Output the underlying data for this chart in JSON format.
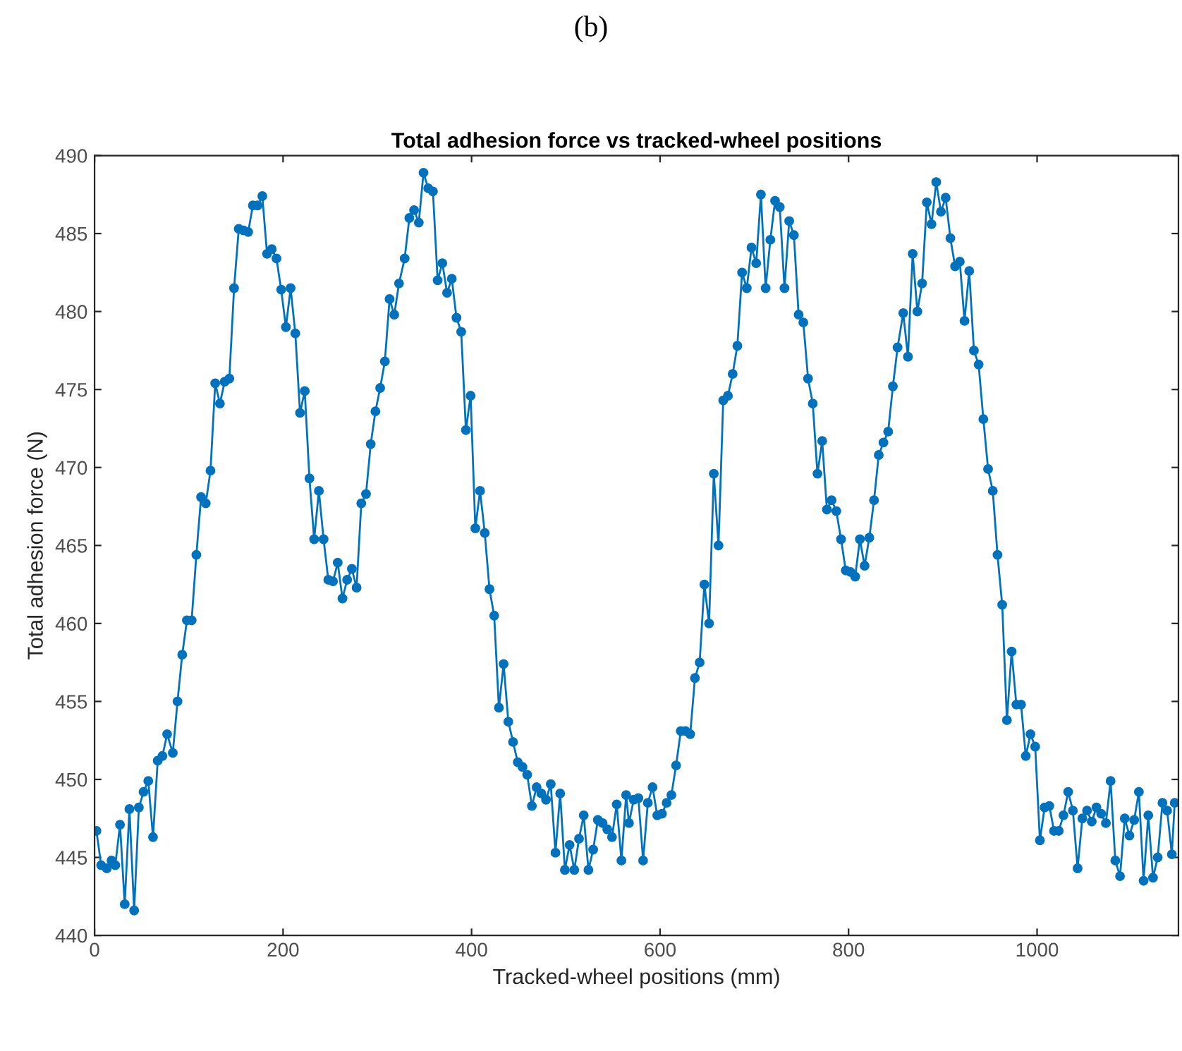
{
  "chart_data": {
    "type": "line",
    "title": "Total adhesion force vs tracked-wheel positions",
    "xlabel": "Tracked-wheel positions (mm)",
    "ylabel": "Total adhesion force (N)",
    "annotations": [
      "(b)"
    ],
    "x": [
      2,
      7,
      13,
      18,
      22,
      27,
      32,
      37,
      42,
      47,
      52,
      57,
      62,
      67,
      72,
      77,
      83,
      88,
      93,
      98,
      103,
      108,
      113,
      118,
      123,
      128,
      133,
      138,
      143,
      148,
      153,
      158,
      163,
      168,
      173,
      178,
      183,
      188,
      193,
      198,
      203,
      208,
      213,
      218,
      223,
      228,
      233,
      238,
      243,
      248,
      253,
      258,
      263,
      268,
      273,
      278,
      283,
      288,
      293,
      298,
      303,
      308,
      313,
      318,
      323,
      329,
      334,
      339,
      344,
      349,
      354,
      359,
      364,
      369,
      374,
      379,
      384,
      389,
      394,
      399,
      404,
      409,
      414,
      419,
      424,
      429,
      434,
      439,
      444,
      449,
      454,
      459,
      464,
      469,
      474,
      479,
      484,
      489,
      494,
      499,
      504,
      509,
      514,
      519,
      524,
      529,
      534,
      539,
      544,
      549,
      554,
      559,
      564,
      567,
      572,
      577,
      582,
      587,
      592,
      597,
      602,
      607,
      612,
      617,
      622,
      627,
      632,
      637,
      642,
      647,
      652,
      657,
      662,
      667,
      672,
      677,
      682,
      687,
      692,
      697,
      702,
      707,
      712,
      717,
      722,
      727,
      732,
      737,
      742,
      747,
      752,
      757,
      762,
      767,
      772,
      777,
      782,
      787,
      792,
      797,
      802,
      807,
      812,
      817,
      822,
      827,
      832,
      837,
      842,
      847,
      852,
      858,
      863,
      868,
      873,
      878,
      883,
      888,
      893,
      898,
      903,
      908,
      913,
      918,
      923,
      928,
      933,
      938,
      943,
      948,
      953,
      958,
      963,
      968,
      973,
      978,
      983,
      988,
      993,
      998,
      1003,
      1008,
      1013,
      1018,
      1023,
      1028,
      1033,
      1038,
      1043,
      1048,
      1053,
      1058,
      1063,
      1068,
      1073,
      1078,
      1083,
      1088,
      1093,
      1098,
      1103,
      1108,
      1113,
      1118,
      1123,
      1128,
      1133,
      1138,
      1143,
      1146
    ],
    "series": [
      {
        "color": "#0072bd",
        "values": [
          446.7,
          444.5,
          444.3,
          444.8,
          444.5,
          447.1,
          442.0,
          448.1,
          441.6,
          448.2,
          449.2,
          449.9,
          446.3,
          451.2,
          451.5,
          452.9,
          451.7,
          455.0,
          458.0,
          460.2,
          460.2,
          464.4,
          468.1,
          467.7,
          469.8,
          475.4,
          474.1,
          475.5,
          475.7,
          481.5,
          485.3,
          485.2,
          485.1,
          486.8,
          486.8,
          487.4,
          483.7,
          484.0,
          483.4,
          481.4,
          479.0,
          481.5,
          478.6,
          473.5,
          474.9,
          469.3,
          465.4,
          468.5,
          465.4,
          462.8,
          462.7,
          463.9,
          461.6,
          462.8,
          463.5,
          462.3,
          467.7,
          468.3,
          471.5,
          473.6,
          475.1,
          476.8,
          480.8,
          479.8,
          481.8,
          483.4,
          486.0,
          486.5,
          485.7,
          488.9,
          487.9,
          487.7,
          482.0,
          483.1,
          481.2,
          482.1,
          479.6,
          478.7,
          472.4,
          474.6,
          466.1,
          468.5,
          465.8,
          462.2,
          460.5,
          454.6,
          457.4,
          453.7,
          452.4,
          451.1,
          450.8,
          450.3,
          448.3,
          449.5,
          449.1,
          448.7,
          449.7,
          445.3,
          449.1,
          444.2,
          445.8,
          444.2,
          446.2,
          447.7,
          444.2,
          445.5,
          447.4,
          447.2,
          446.8,
          446.3,
          448.4,
          444.8,
          449.0,
          447.2,
          448.7,
          448.8,
          444.8,
          448.5,
          449.5,
          447.7,
          447.8,
          448.5,
          449.0,
          450.9,
          453.1,
          453.1,
          452.9,
          456.5,
          457.5,
          462.5,
          460.0,
          469.6,
          465.0,
          474.3,
          474.6,
          476.0,
          477.8,
          482.5,
          481.5,
          484.1,
          483.1,
          487.5,
          481.5,
          484.6,
          487.1,
          486.7,
          481.5,
          485.8,
          484.9,
          479.8,
          479.3,
          475.7,
          474.1,
          469.6,
          471.7,
          467.3,
          467.9,
          467.2,
          465.4,
          463.4,
          463.3,
          463.0,
          465.4,
          463.7,
          465.5,
          467.9,
          470.8,
          471.6,
          472.3,
          475.2,
          477.7,
          479.9,
          477.1,
          483.7,
          480.0,
          481.8,
          487.0,
          485.6,
          488.3,
          486.4,
          487.3,
          484.7,
          482.9,
          483.2,
          479.4,
          482.6,
          477.5,
          476.6,
          473.1,
          469.9,
          468.5,
          464.4,
          461.2,
          453.8,
          458.2,
          454.8,
          454.8,
          451.5,
          452.9,
          452.1,
          446.1,
          448.2,
          448.3,
          446.7,
          446.7,
          447.7,
          449.2,
          448.0,
          444.3,
          447.5,
          448.0,
          447.3,
          448.2,
          447.8,
          447.2,
          449.9,
          444.8,
          443.8,
          447.5,
          446.4,
          447.4,
          449.2,
          443.5,
          447.7,
          443.7,
          445.0,
          448.5,
          448.0,
          445.2,
          448.5
        ]
      }
    ],
    "xlim": [
      0,
      1150
    ],
    "xticks": [
      0,
      200,
      400,
      600,
      800,
      1000
    ],
    "ylim": [
      440,
      490
    ],
    "yticks": [
      440,
      445,
      450,
      455,
      460,
      465,
      470,
      475,
      480,
      485,
      490
    ],
    "grid": false,
    "legend": false,
    "marker": "circle",
    "line_style": "solid"
  }
}
